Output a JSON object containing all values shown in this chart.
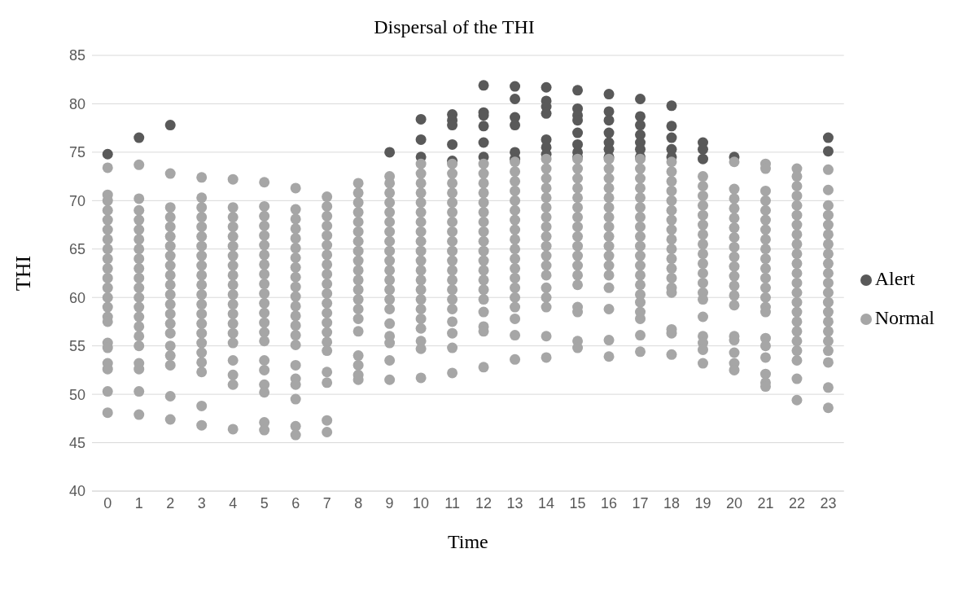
{
  "chart_data": {
    "type": "scatter",
    "title": "Dispersal of the THI",
    "xlabel": "Time",
    "ylabel": "THI",
    "xlim": [
      -0.5,
      23.5
    ],
    "xticks": [
      0,
      1,
      2,
      3,
      4,
      5,
      6,
      7,
      8,
      9,
      10,
      11,
      12,
      13,
      14,
      15,
      16,
      17,
      18,
      19,
      20,
      21,
      22,
      23
    ],
    "ylim": [
      40,
      85
    ],
    "yticks": [
      40,
      45,
      50,
      55,
      60,
      65,
      70,
      75,
      80,
      85
    ],
    "grid": "y",
    "legend": "right",
    "marker": "circle",
    "series": [
      {
        "name": "Alert",
        "color": "#595959",
        "x": [
          0,
          1,
          2,
          9,
          10,
          10,
          10,
          11,
          11,
          11,
          11,
          11,
          12,
          12,
          12,
          12,
          12,
          12,
          13,
          13,
          13,
          13,
          13,
          13,
          14,
          14,
          14,
          14,
          14,
          14,
          14,
          15,
          15,
          15,
          15,
          15,
          15,
          15,
          15,
          16,
          16,
          16,
          16,
          16,
          16,
          16,
          17,
          17,
          17,
          17,
          17,
          17,
          17,
          18,
          18,
          18,
          18,
          18,
          19,
          19,
          19,
          20,
          23,
          23
        ],
        "values": [
          74.8,
          76.5,
          77.8,
          75,
          78.4,
          76.3,
          74.5,
          78.9,
          78.3,
          77.8,
          75.8,
          74.1,
          81.9,
          79.1,
          78.8,
          77.7,
          76,
          74.5,
          81.8,
          80.5,
          78.6,
          77.8,
          75,
          74.3,
          81.7,
          80.3,
          79.7,
          79,
          76.3,
          75.5,
          74.8,
          81.4,
          79.5,
          78.8,
          78.3,
          77,
          75.8,
          75,
          74.5,
          81,
          79.2,
          78.3,
          77,
          76,
          75.3,
          74.5,
          80.5,
          78.7,
          77.8,
          76.8,
          76,
          75.3,
          74.5,
          79.8,
          77.7,
          76.5,
          75.3,
          74.5,
          76,
          75.3,
          74.3,
          74.5,
          76.5,
          75.1
        ]
      },
      {
        "name": "Normal",
        "color": "#a6a6a6",
        "x": [
          0,
          0,
          0,
          0,
          0,
          0,
          0,
          0,
          0,
          0,
          0,
          0,
          0,
          0,
          0,
          0,
          0,
          0,
          0,
          0,
          0,
          0,
          1,
          1,
          1,
          1,
          1,
          1,
          1,
          1,
          1,
          1,
          1,
          1,
          1,
          1,
          1,
          1,
          1,
          1,
          1,
          1,
          1,
          2,
          2,
          2,
          2,
          2,
          2,
          2,
          2,
          2,
          2,
          2,
          2,
          2,
          2,
          2,
          2,
          2,
          2,
          2,
          2,
          3,
          3,
          3,
          3,
          3,
          3,
          3,
          3,
          3,
          3,
          3,
          3,
          3,
          3,
          3,
          3,
          3,
          3,
          3,
          3,
          3,
          3,
          4,
          4,
          4,
          4,
          4,
          4,
          4,
          4,
          4,
          4,
          4,
          4,
          4,
          4,
          4,
          4,
          4,
          4,
          4,
          4,
          5,
          5,
          5,
          5,
          5,
          5,
          5,
          5,
          5,
          5,
          5,
          5,
          5,
          5,
          5,
          5,
          5,
          5,
          5,
          5,
          5,
          5,
          6,
          6,
          6,
          6,
          6,
          6,
          6,
          6,
          6,
          6,
          6,
          6,
          6,
          6,
          6,
          6,
          6,
          6,
          6,
          6,
          6,
          6,
          7,
          7,
          7,
          7,
          7,
          7,
          7,
          7,
          7,
          7,
          7,
          7,
          7,
          7,
          7,
          7,
          7,
          7,
          7,
          7,
          7,
          8,
          8,
          8,
          8,
          8,
          8,
          8,
          8,
          8,
          8,
          8,
          8,
          8,
          8,
          8,
          8,
          8,
          8,
          8,
          8,
          9,
          9,
          9,
          9,
          9,
          9,
          9,
          9,
          9,
          9,
          9,
          9,
          9,
          9,
          9,
          9,
          9,
          9,
          9,
          9,
          10,
          10,
          10,
          10,
          10,
          10,
          10,
          10,
          10,
          10,
          10,
          10,
          10,
          10,
          10,
          10,
          10,
          10,
          10,
          10,
          10,
          11,
          11,
          11,
          11,
          11,
          11,
          11,
          11,
          11,
          11,
          11,
          11,
          11,
          11,
          11,
          11,
          11,
          11,
          11,
          11,
          12,
          12,
          12,
          12,
          12,
          12,
          12,
          12,
          12,
          12,
          12,
          12,
          12,
          12,
          12,
          12,
          12,
          12,
          12,
          13,
          13,
          13,
          13,
          13,
          13,
          13,
          13,
          13,
          13,
          13,
          13,
          13,
          13,
          13,
          13,
          13,
          13,
          13,
          14,
          14,
          14,
          14,
          14,
          14,
          14,
          14,
          14,
          14,
          14,
          14,
          14,
          14,
          14,
          14,
          14,
          14,
          15,
          15,
          15,
          15,
          15,
          15,
          15,
          15,
          15,
          15,
          15,
          15,
          15,
          15,
          15,
          15,
          15,
          15,
          16,
          16,
          16,
          16,
          16,
          16,
          16,
          16,
          16,
          16,
          16,
          16,
          16,
          16,
          16,
          16,
          16,
          17,
          17,
          17,
          17,
          17,
          17,
          17,
          17,
          17,
          17,
          17,
          17,
          17,
          17,
          17,
          17,
          17,
          17,
          17,
          17,
          18,
          18,
          18,
          18,
          18,
          18,
          18,
          18,
          18,
          18,
          18,
          18,
          18,
          18,
          18,
          18,
          18,
          18,
          19,
          19,
          19,
          19,
          19,
          19,
          19,
          19,
          19,
          19,
          19,
          19,
          19,
          19,
          19,
          19,
          19,
          19,
          19,
          20,
          20,
          20,
          20,
          20,
          20,
          20,
          20,
          20,
          20,
          20,
          20,
          20,
          20,
          20,
          20,
          20,
          20,
          20,
          21,
          21,
          21,
          21,
          21,
          21,
          21,
          21,
          21,
          21,
          21,
          21,
          21,
          21,
          21,
          21,
          21,
          21,
          21,
          21,
          21,
          21,
          22,
          22,
          22,
          22,
          22,
          22,
          22,
          22,
          22,
          22,
          22,
          22,
          22,
          22,
          22,
          22,
          22,
          22,
          22,
          22,
          22,
          22,
          22,
          23,
          23,
          23,
          23,
          23,
          23,
          23,
          23,
          23,
          23,
          23,
          23,
          23,
          23,
          23,
          23,
          23,
          23,
          23,
          23,
          23
        ],
        "values": [
          73.4,
          70.6,
          70,
          69,
          68,
          67,
          66,
          65,
          64,
          63,
          62,
          61,
          60,
          59,
          58,
          57.5,
          55.3,
          54.8,
          53.2,
          52.6,
          50.3,
          48.1,
          73.7,
          70.2,
          69,
          68,
          67,
          66,
          65,
          64,
          63,
          62,
          61,
          60,
          59,
          58,
          57,
          56,
          55,
          53.2,
          52.6,
          50.3,
          47.9,
          72.8,
          69.3,
          68.3,
          67.3,
          66.3,
          65.3,
          64.3,
          63.3,
          62.3,
          61.3,
          60.3,
          59.3,
          58.3,
          57.3,
          56.3,
          55,
          54,
          53,
          49.8,
          47.4,
          72.4,
          70.3,
          69.3,
          68.3,
          67.3,
          66.3,
          65.3,
          64.3,
          63.3,
          62.3,
          61.3,
          60.3,
          59.3,
          58.3,
          57.3,
          56.3,
          55.3,
          54.3,
          53.3,
          52.3,
          48.8,
          46.8,
          72.2,
          69.3,
          68.3,
          67.3,
          66.3,
          65.3,
          64.3,
          63.3,
          62.3,
          61.3,
          60.3,
          59.3,
          58.3,
          57.3,
          56.3,
          55.3,
          53.5,
          52,
          51,
          46.4,
          71.9,
          69.4,
          68.4,
          67.4,
          66.4,
          65.4,
          64.4,
          63.4,
          62.4,
          61.4,
          60.4,
          59.4,
          58.4,
          57.4,
          56.4,
          55.5,
          53.5,
          52.5,
          51,
          50.2,
          47.1,
          46.3,
          71.3,
          69.1,
          68.1,
          67.1,
          66.1,
          65.1,
          64.1,
          63.1,
          62.1,
          61.1,
          60.1,
          59.1,
          58.1,
          57.1,
          56.1,
          55.1,
          53,
          51.6,
          51,
          49.5,
          46.7,
          45.8,
          70.4,
          69.4,
          68.4,
          67.4,
          66.4,
          65.4,
          64.4,
          63.4,
          62.4,
          61.4,
          60.4,
          59.4,
          58.4,
          57.4,
          56.4,
          55.4,
          54.5,
          52.3,
          51.2,
          47.3,
          46.1,
          71.8,
          70.8,
          69.8,
          68.8,
          67.8,
          66.8,
          65.8,
          64.8,
          63.8,
          62.8,
          61.8,
          60.8,
          59.8,
          58.8,
          57.8,
          56.5,
          54,
          53,
          52,
          51.5,
          72.5,
          71.8,
          70.8,
          69.8,
          68.8,
          67.8,
          66.8,
          65.8,
          64.8,
          63.8,
          62.8,
          61.8,
          60.8,
          59.8,
          58.8,
          57.3,
          56,
          55.3,
          53.5,
          51.5,
          73.8,
          72.8,
          71.8,
          70.8,
          69.8,
          68.8,
          67.8,
          66.8,
          65.8,
          64.8,
          63.8,
          62.8,
          61.8,
          60.8,
          59.8,
          58.8,
          57.8,
          56.8,
          55.5,
          54.7,
          51.7,
          73.8,
          72.8,
          71.8,
          70.8,
          69.8,
          68.8,
          67.8,
          66.8,
          65.8,
          64.8,
          63.8,
          62.8,
          61.8,
          60.8,
          59.8,
          58.8,
          57.5,
          56.3,
          54.8,
          52.2,
          73.8,
          72.8,
          71.8,
          70.8,
          69.8,
          68.8,
          67.8,
          66.8,
          65.8,
          64.8,
          63.8,
          62.8,
          61.8,
          60.8,
          59.8,
          58.5,
          57,
          56.5,
          52.8,
          74,
          73,
          72,
          71,
          70,
          69,
          68,
          67,
          66,
          65,
          64,
          63,
          62,
          61,
          60,
          59,
          57.8,
          56.1,
          53.6,
          74.3,
          73.3,
          72.3,
          71.3,
          70.3,
          69.3,
          68.3,
          67.3,
          66.3,
          65.3,
          64.3,
          63.3,
          62.3,
          61,
          60,
          59,
          56,
          53.8,
          74.3,
          73.3,
          72.3,
          71.3,
          70.3,
          69.3,
          68.3,
          67.3,
          66.3,
          65.3,
          64.3,
          63.3,
          62.3,
          61.3,
          59,
          58.5,
          55.5,
          54.8,
          74.3,
          73.3,
          72.3,
          71.3,
          70.3,
          69.3,
          68.3,
          67.3,
          66.3,
          65.3,
          64.3,
          63.3,
          62.3,
          61,
          58.8,
          55.6,
          53.9,
          74.3,
          73.3,
          72.3,
          71.3,
          70.3,
          69.3,
          68.3,
          67.3,
          66.3,
          65.3,
          64.3,
          63.3,
          62.3,
          61.3,
          60.3,
          59.5,
          58.5,
          57.8,
          56.1,
          54.4,
          74,
          73,
          72,
          71,
          70,
          69,
          68,
          67,
          66,
          65,
          64,
          63,
          62,
          61,
          60.5,
          56.7,
          56.3,
          54.1,
          72.5,
          71.5,
          70.5,
          69.5,
          68.5,
          67.5,
          66.5,
          65.5,
          64.5,
          63.5,
          62.5,
          61.5,
          60.5,
          59.8,
          58,
          56,
          55.3,
          54.6,
          53.2,
          74,
          71.2,
          70.2,
          69.2,
          68.2,
          67.2,
          66.2,
          65.2,
          64.2,
          63.2,
          62.2,
          61.2,
          60.2,
          59.2,
          56,
          55.6,
          54.3,
          53.2,
          52.5,
          73.8,
          73.3,
          71,
          70,
          69,
          68,
          67,
          66,
          65,
          64,
          63,
          62,
          61,
          60,
          59,
          58.5,
          55.8,
          55,
          53.8,
          52.1,
          51.2,
          50.8,
          73.3,
          72.5,
          71.5,
          70.5,
          69.5,
          68.5,
          67.5,
          66.5,
          65.5,
          64.5,
          63.5,
          62.5,
          61.5,
          60.5,
          59.5,
          58.5,
          57.5,
          56.5,
          55.5,
          54.5,
          53.5,
          51.6,
          49.4,
          73.2,
          71.1,
          69.5,
          68.5,
          67.5,
          66.5,
          65.5,
          64.5,
          63.5,
          62.5,
          61.5,
          60.5,
          59.5,
          58.5,
          57.5,
          56.5,
          55.5,
          54.5,
          53.3,
          50.7,
          48.6
        ]
      }
    ]
  }
}
